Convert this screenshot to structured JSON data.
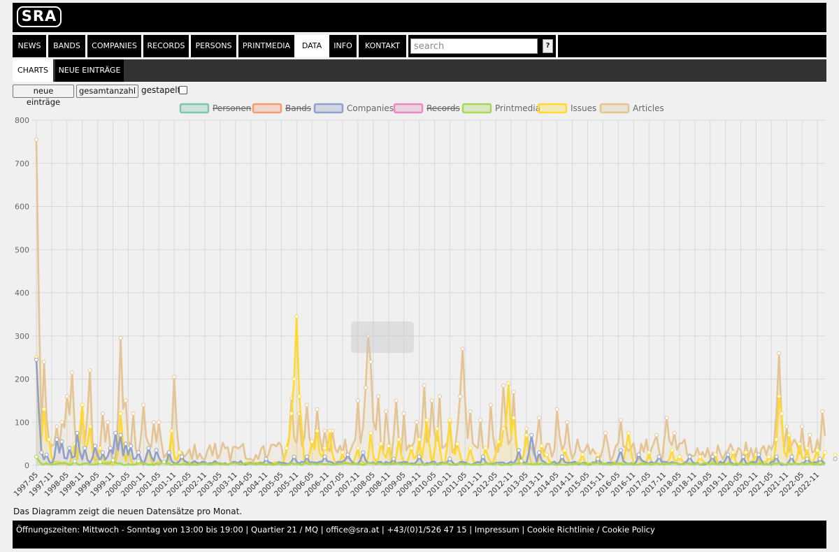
{
  "header": {
    "logo_text": "SRA"
  },
  "nav": {
    "items": [
      "NEWS",
      "BANDS",
      "COMPANIES",
      "RECORDS",
      "PERSONS",
      "PRINTMEDIA",
      "DATA",
      "INFO",
      "KONTAKT"
    ],
    "active": "DATA",
    "search_placeholder": "search",
    "help_label": "?"
  },
  "subnav": {
    "items": [
      "CHARTS",
      "NEUE EINTRÄGE"
    ],
    "active": "CHARTS"
  },
  "controls": {
    "btn_new": "neue einträge",
    "btn_total": "gesamtanzahl",
    "stacked_label": "gestapelt",
    "stacked_checked": false
  },
  "chart_note": "Das Diagramm zeigt die neuen Datensätze pro Monat.",
  "footer": {
    "text": "Öffnungszeiten: Mittwoch - Sonntag von 13:00 bis 19:00 | Quartier 21 / MQ | office@sra.at | +43/(0)1/526 47 15 | Impressum | Cookie Richtlinie / Cookie Policy"
  },
  "chart_data": {
    "type": "line",
    "title": "",
    "xlabel": "",
    "ylabel": "",
    "ylim": [
      0,
      800
    ],
    "yticks": [
      0,
      100,
      200,
      300,
      400,
      500,
      600,
      700,
      800
    ],
    "start_month": "1997-05",
    "end_month": "2023-02",
    "xtick_labels": [
      "1997-05",
      "1997-11",
      "1998-05",
      "1998-11",
      "1999-05",
      "1999-11",
      "2000-05",
      "2000-11",
      "2001-05",
      "2001-11",
      "2002-05",
      "2002-11",
      "2003-05",
      "2003-11",
      "2004-05",
      "2004-11",
      "2005-05",
      "2005-11",
      "2006-05",
      "2006-11",
      "2007-05",
      "2007-11",
      "2008-05",
      "2008-11",
      "2009-05",
      "2009-11",
      "2010-05",
      "2010-11",
      "2011-05",
      "2011-11",
      "2012-05",
      "2012-11",
      "2013-05",
      "2013-11",
      "2014-05",
      "2014-11",
      "2015-05",
      "2015-11",
      "2016-05",
      "2016-11",
      "2017-05",
      "2017-11",
      "2018-05",
      "2018-11",
      "2019-05",
      "2019-11",
      "2020-05",
      "2020-11",
      "2021-05",
      "2021-11",
      "2022-05",
      "2022-11"
    ],
    "legend_position": "top",
    "legend": [
      {
        "name": "Personen",
        "color": "#7cc7a8",
        "hidden": true
      },
      {
        "name": "Bands",
        "color": "#f59b70",
        "hidden": true
      },
      {
        "name": "Companies",
        "color": "#8ea0cb",
        "hidden": false
      },
      {
        "name": "Records",
        "color": "#e68ac3",
        "hidden": true
      },
      {
        "name": "Printmedia",
        "color": "#a6d854",
        "hidden": false
      },
      {
        "name": "Issues",
        "color": "#ffd92f",
        "hidden": false
      },
      {
        "name": "Articles",
        "color": "#e5c494",
        "hidden": false
      }
    ],
    "series": [
      {
        "name": "Articles",
        "color": "#e5c494",
        "peaks": [
          [
            0,
            755
          ],
          [
            3,
            240
          ],
          [
            8,
            90
          ],
          [
            10,
            100
          ],
          [
            12,
            160
          ],
          [
            14,
            215
          ],
          [
            18,
            120
          ],
          [
            21,
            220
          ],
          [
            26,
            120
          ],
          [
            28,
            100
          ],
          [
            33,
            295
          ],
          [
            35,
            150
          ],
          [
            38,
            120
          ],
          [
            42,
            140
          ],
          [
            46,
            100
          ],
          [
            48,
            100
          ],
          [
            54,
            205
          ],
          [
            63,
            15
          ],
          [
            84,
            15
          ],
          [
            100,
            155
          ],
          [
            103,
            120
          ],
          [
            106,
            140
          ],
          [
            110,
            130
          ],
          [
            113,
            80
          ],
          [
            116,
            80
          ],
          [
            121,
            60
          ],
          [
            126,
            150
          ],
          [
            129,
            180
          ],
          [
            130,
            300
          ],
          [
            131,
            240
          ],
          [
            134,
            160
          ],
          [
            137,
            125
          ],
          [
            141,
            150
          ],
          [
            144,
            120
          ],
          [
            149,
            100
          ],
          [
            152,
            185
          ],
          [
            155,
            150
          ],
          [
            158,
            160
          ],
          [
            162,
            100
          ],
          [
            166,
            160
          ],
          [
            167,
            270
          ],
          [
            170,
            125
          ],
          [
            174,
            105
          ],
          [
            178,
            140
          ],
          [
            183,
            185
          ],
          [
            187,
            170
          ],
          [
            192,
            85
          ],
          [
            197,
            110
          ],
          [
            200,
            50
          ],
          [
            204,
            130
          ],
          [
            208,
            100
          ],
          [
            212,
            60
          ],
          [
            223,
            75
          ],
          [
            229,
            105
          ],
          [
            233,
            40
          ],
          [
            239,
            60
          ],
          [
            243,
            70
          ],
          [
            247,
            110
          ],
          [
            250,
            75
          ],
          [
            254,
            60
          ],
          [
            259,
            40
          ],
          [
            263,
            40
          ],
          [
            270,
            30
          ],
          [
            276,
            35
          ],
          [
            280,
            40
          ],
          [
            285,
            45
          ],
          [
            289,
            50
          ],
          [
            291,
            260
          ],
          [
            294,
            90
          ],
          [
            297,
            60
          ],
          [
            300,
            90
          ],
          [
            303,
            70
          ],
          [
            306,
            60
          ],
          [
            308,
            125
          ],
          [
            311,
            50
          ],
          [
            314,
            25
          ],
          [
            318,
            20
          ],
          [
            322,
            20
          ],
          [
            324,
            15
          ],
          [
            326,
            20
          ],
          [
            328,
            25
          ],
          [
            330,
            55
          ]
        ],
        "base": 30
      },
      {
        "name": "Issues",
        "color": "#ffd92f",
        "peaks": [
          [
            0,
            250
          ],
          [
            3,
            130
          ],
          [
            5,
            60
          ],
          [
            15,
            50
          ],
          [
            18,
            140
          ],
          [
            21,
            90
          ],
          [
            25,
            40
          ],
          [
            33,
            120
          ],
          [
            36,
            40
          ],
          [
            44,
            40
          ],
          [
            53,
            80
          ],
          [
            56,
            30
          ],
          [
            98,
            40
          ],
          [
            100,
            120
          ],
          [
            101,
            200
          ],
          [
            102,
            345
          ],
          [
            103,
            160
          ],
          [
            108,
            55
          ],
          [
            110,
            80
          ],
          [
            113,
            40
          ],
          [
            115,
            80
          ],
          [
            120,
            30
          ],
          [
            126,
            40
          ],
          [
            131,
            75
          ],
          [
            135,
            50
          ],
          [
            138,
            45
          ],
          [
            142,
            60
          ],
          [
            147,
            40
          ],
          [
            150,
            60
          ],
          [
            153,
            105
          ],
          [
            157,
            85
          ],
          [
            162,
            105
          ],
          [
            165,
            50
          ],
          [
            170,
            40
          ],
          [
            176,
            40
          ],
          [
            181,
            55
          ],
          [
            183,
            85
          ],
          [
            185,
            190
          ],
          [
            187,
            110
          ],
          [
            192,
            70
          ],
          [
            198,
            45
          ],
          [
            200,
            25
          ],
          [
            207,
            35
          ],
          [
            214,
            25
          ],
          [
            220,
            25
          ],
          [
            232,
            75
          ],
          [
            236,
            25
          ],
          [
            240,
            30
          ],
          [
            249,
            35
          ],
          [
            252,
            20
          ],
          [
            260,
            20
          ],
          [
            266,
            25
          ],
          [
            273,
            30
          ],
          [
            278,
            30
          ],
          [
            282,
            25
          ],
          [
            287,
            20
          ],
          [
            290,
            60
          ],
          [
            291,
            160
          ],
          [
            292,
            120
          ],
          [
            295,
            70
          ],
          [
            299,
            50
          ],
          [
            302,
            40
          ],
          [
            306,
            35
          ],
          [
            309,
            30
          ],
          [
            313,
            25
          ],
          [
            318,
            20
          ],
          [
            322,
            15
          ],
          [
            326,
            20
          ],
          [
            330,
            15
          ]
        ],
        "base": 5
      },
      {
        "name": "Companies",
        "color": "#8ea0cb",
        "peaks": [
          [
            0,
            245
          ],
          [
            2,
            30
          ],
          [
            4,
            25
          ],
          [
            8,
            60
          ],
          [
            10,
            55
          ],
          [
            13,
            40
          ],
          [
            16,
            75
          ],
          [
            19,
            40
          ],
          [
            23,
            45
          ],
          [
            26,
            30
          ],
          [
            29,
            40
          ],
          [
            31,
            75
          ],
          [
            33,
            70
          ],
          [
            35,
            50
          ],
          [
            37,
            45
          ],
          [
            40,
            30
          ],
          [
            44,
            40
          ],
          [
            47,
            35
          ],
          [
            52,
            30
          ],
          [
            57,
            20
          ],
          [
            62,
            10
          ],
          [
            70,
            10
          ],
          [
            80,
            10
          ],
          [
            90,
            15
          ],
          [
            101,
            20
          ],
          [
            106,
            20
          ],
          [
            113,
            20
          ],
          [
            122,
            25
          ],
          [
            128,
            30
          ],
          [
            140,
            15
          ],
          [
            150,
            20
          ],
          [
            162,
            15
          ],
          [
            175,
            20
          ],
          [
            189,
            35
          ],
          [
            194,
            70
          ],
          [
            197,
            30
          ],
          [
            206,
            20
          ],
          [
            220,
            15
          ],
          [
            229,
            35
          ],
          [
            236,
            25
          ],
          [
            244,
            20
          ],
          [
            256,
            20
          ],
          [
            265,
            20
          ],
          [
            271,
            25
          ],
          [
            277,
            20
          ],
          [
            283,
            25
          ],
          [
            290,
            20
          ],
          [
            296,
            20
          ],
          [
            302,
            15
          ],
          [
            307,
            15
          ],
          [
            313,
            15
          ],
          [
            320,
            15
          ],
          [
            326,
            10
          ],
          [
            330,
            0
          ]
        ],
        "base": 5
      },
      {
        "name": "Printmedia",
        "color": "#a6d854",
        "peaks": [
          [
            0,
            20
          ],
          [
            4,
            5
          ],
          [
            15,
            10
          ],
          [
            25,
            8
          ],
          [
            30,
            12
          ],
          [
            40,
            10
          ],
          [
            50,
            8
          ],
          [
            70,
            5
          ],
          [
            100,
            6
          ],
          [
            130,
            6
          ],
          [
            160,
            6
          ],
          [
            190,
            10
          ],
          [
            220,
            6
          ],
          [
            250,
            5
          ],
          [
            280,
            5
          ],
          [
            310,
            5
          ],
          [
            330,
            3
          ]
        ],
        "base": 3
      }
    ]
  }
}
